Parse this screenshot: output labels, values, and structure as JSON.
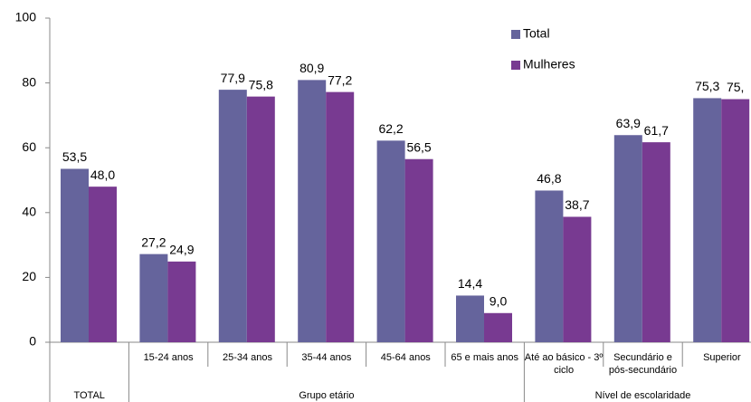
{
  "chart_data": {
    "type": "bar",
    "categories": [
      null,
      "15-24 anos",
      "25-34 anos",
      "35-44 anos",
      "45-64 anos",
      "65 e mais anos",
      "Até ao básico - 3º ciclo",
      "Secundário e pós-secundário",
      "Superior"
    ],
    "groups": [
      {
        "label": "TOTAL",
        "span": 1
      },
      {
        "label": "Grupo etário",
        "span": 5
      },
      {
        "label": "Nível de escolaridade",
        "span": 3
      }
    ],
    "series": [
      {
        "name": "Total",
        "color": "#65649c",
        "values": [
          53.5,
          27.2,
          77.9,
          80.9,
          62.2,
          14.4,
          46.8,
          63.9,
          75.3
        ],
        "value_labels": [
          "53,5",
          "27,2",
          "77,9",
          "80,9",
          "62,2",
          "14,4",
          "46,8",
          "63,9",
          "75,3"
        ]
      },
      {
        "name": "Mulheres",
        "color": "#783a91",
        "values": [
          48.0,
          24.9,
          75.8,
          77.2,
          56.5,
          9.0,
          38.7,
          61.7,
          75
        ],
        "value_labels": [
          "48,0",
          "24,9",
          "75,8",
          "77,2",
          "56,5",
          "9,0",
          "38,7",
          "61,7",
          "75,"
        ]
      }
    ],
    "ylim": [
      0,
      100
    ],
    "yticks": [
      0,
      20,
      40,
      60,
      80,
      100
    ],
    "legend": "top-right"
  }
}
